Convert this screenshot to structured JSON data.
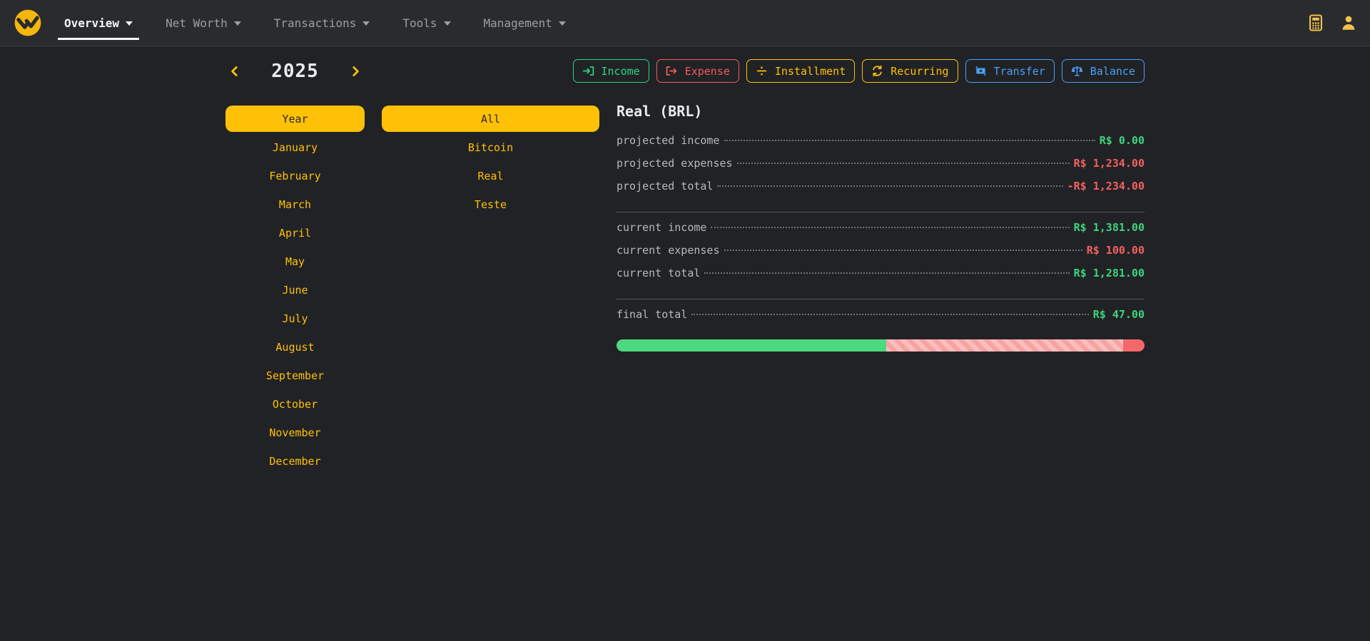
{
  "navbar": {
    "items": [
      {
        "label": "Overview",
        "active": true
      },
      {
        "label": "Net Worth",
        "active": false
      },
      {
        "label": "Transactions",
        "active": false
      },
      {
        "label": "Tools",
        "active": false
      },
      {
        "label": "Management",
        "active": false
      }
    ]
  },
  "period": {
    "year": "2025",
    "year_button": "Year",
    "months": [
      "January",
      "February",
      "March",
      "April",
      "May",
      "June",
      "July",
      "August",
      "September",
      "October",
      "November",
      "December"
    ]
  },
  "wallets": {
    "all_button": "All",
    "items": [
      "Bitcoin",
      "Real",
      "Teste"
    ]
  },
  "actions": {
    "income": "Income",
    "expense": "Expense",
    "installment": "Installment",
    "recurring": "Recurring",
    "transfer": "Transfer",
    "balance": "Balance"
  },
  "summary": {
    "title": "Real (BRL)",
    "projected": [
      {
        "label": "projected income",
        "value": "R$ 0.00",
        "status": "positive"
      },
      {
        "label": "projected expenses",
        "value": "R$ 1,234.00",
        "status": "negative"
      },
      {
        "label": "projected total",
        "value": "-R$ 1,234.00",
        "status": "negative"
      }
    ],
    "current": [
      {
        "label": "current income",
        "value": "R$ 1,381.00",
        "status": "positive"
      },
      {
        "label": "current expenses",
        "value": "R$ 100.00",
        "status": "negative"
      },
      {
        "label": "current total",
        "value": "R$ 1,281.00",
        "status": "positive"
      }
    ],
    "final": {
      "label": "final total",
      "value": "R$ 47.00",
      "status": "positive"
    },
    "progress": {
      "segments": [
        {
          "kind": "green",
          "pct": 51.1
        },
        {
          "kind": "striped",
          "pct": 44.9
        },
        {
          "kind": "red",
          "pct": 4.0
        }
      ]
    }
  },
  "colors": {
    "accent": "#ffc107",
    "positive": "#3ed47f",
    "negative": "#f56060",
    "info": "#4aa0f6",
    "progress_green": "#4cd97f",
    "progress_pink": "#f8a2a2",
    "progress_red": "#f3696b"
  }
}
